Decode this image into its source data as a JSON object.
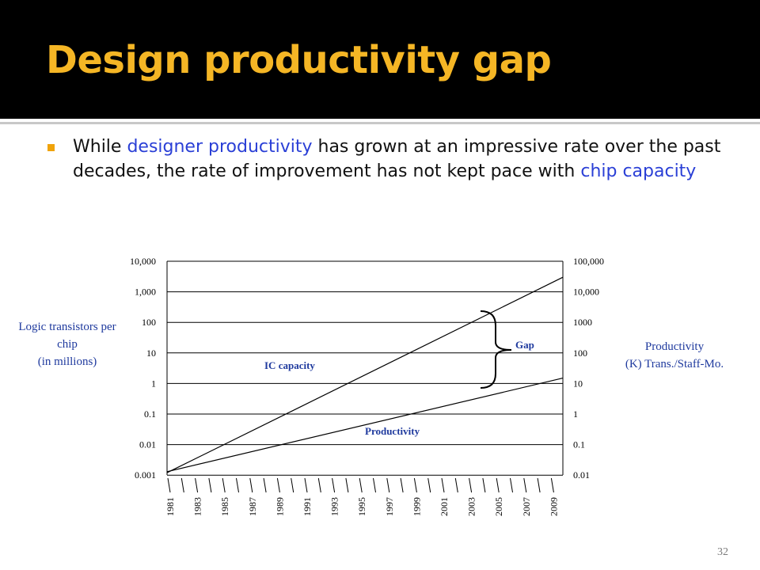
{
  "slide": {
    "title": "Design productivity gap",
    "bullet": {
      "part1": "While ",
      "highlight1": "designer productivity",
      "part2": " has grown at an impressive rate over the past decades, the rate of improvement has not kept pace with ",
      "highlight2": "chip capacity"
    },
    "page_number": "32",
    "colors": {
      "title": "#f5b625",
      "title_bar": "#000000",
      "highlight": "#2a3fd6",
      "bullet": "#f0a30a"
    }
  },
  "chart_data": {
    "type": "line",
    "title": "",
    "x_categories": [
      "1981",
      "1983",
      "1985",
      "1987",
      "1989",
      "1991",
      "1993",
      "1995",
      "1997",
      "1999",
      "2001",
      "2003",
      "2005",
      "2007",
      "2009"
    ],
    "left_axis": {
      "label_lines": [
        "Logic transistors per",
        "chip",
        "(in millions)"
      ],
      "ticks": [
        "10,000",
        "1,000",
        "100",
        "10",
        "1",
        "0.1",
        "0.01",
        "0.001"
      ],
      "scale": "log",
      "range": [
        0.001,
        10000
      ]
    },
    "right_axis": {
      "label_lines": [
        "Productivity",
        "(K) Trans./Staff-Mo."
      ],
      "ticks": [
        "100,000",
        "10,000",
        "1000",
        "100",
        "10",
        "1",
        "0.1",
        "0.01"
      ],
      "scale": "log",
      "range": [
        0.01,
        100000
      ]
    },
    "grid": "horizontal",
    "series": [
      {
        "name": "IC capacity",
        "axis": "left",
        "x": [
          1981,
          2009
        ],
        "y": [
          0.0012,
          3000
        ]
      },
      {
        "name": "Productivity",
        "axis": "right",
        "x": [
          1981,
          2009
        ],
        "y": [
          0.013,
          15
        ]
      }
    ],
    "annotations": [
      {
        "text": "Gap"
      }
    ]
  }
}
